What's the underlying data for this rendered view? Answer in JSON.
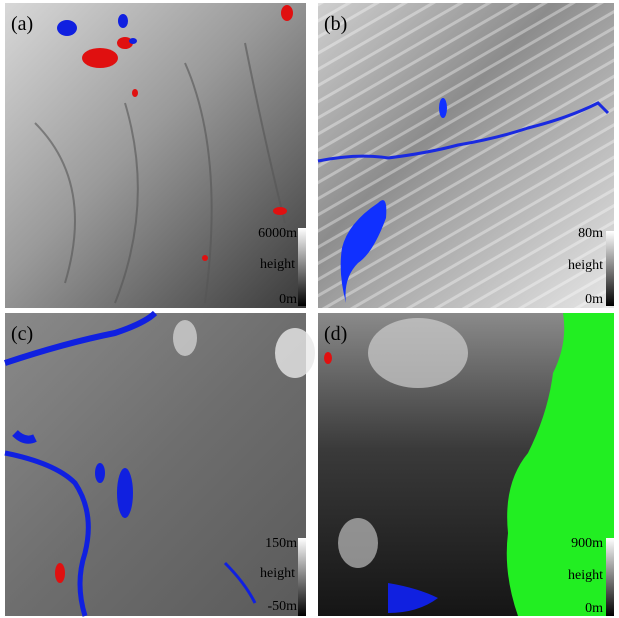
{
  "panels": [
    {
      "label": "(a)",
      "max": "6000m",
      "name": "height",
      "min": "0m"
    },
    {
      "label": "(b)",
      "max": "80m",
      "name": "height",
      "min": "0m"
    },
    {
      "label": "(c)",
      "max": "150m",
      "name": "height",
      "min": "-50m"
    },
    {
      "label": "(d)",
      "max": "900m",
      "name": "height",
      "min": "0m"
    }
  ]
}
